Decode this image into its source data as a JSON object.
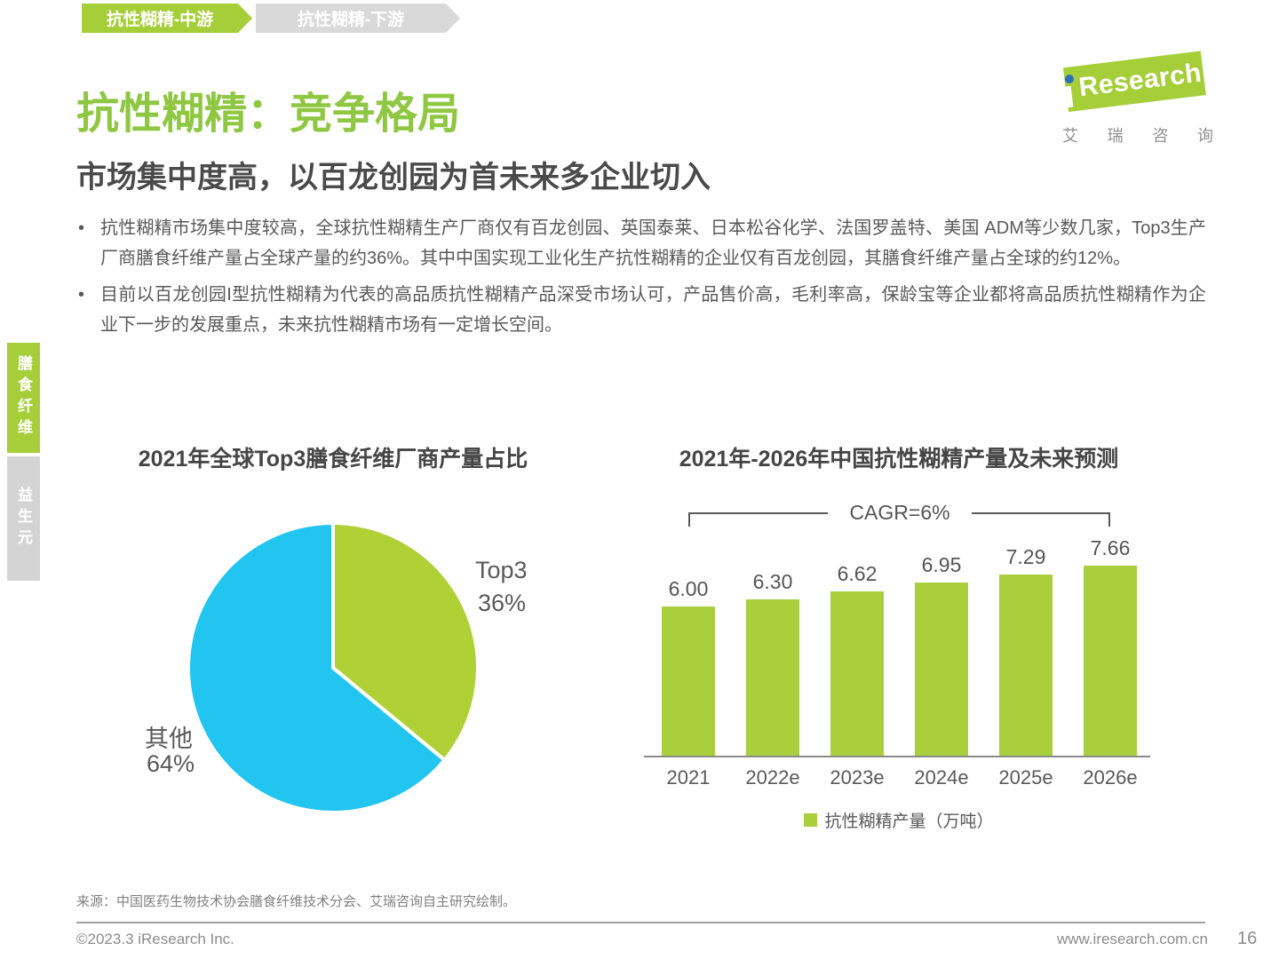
{
  "breadcrumb": {
    "items": [
      {
        "label": "抗性糊精-中游",
        "active": true
      },
      {
        "label": "抗性糊精-下游",
        "active": false
      }
    ]
  },
  "logo": {
    "brand_text": "Research",
    "chinese_chars": [
      "艾",
      "瑞",
      "咨",
      "询"
    ]
  },
  "header": {
    "title": "抗性糊精：竞争格局",
    "subtitle": "市场集中度高，以百龙创园为首未来多企业切入"
  },
  "bullets": [
    "抗性糊精市场集中度较高，全球抗性糊精生产厂商仅有百龙创园、英国泰莱、日本松谷化学、法国罗盖特、美国 ADM等少数几家，Top3生产厂商膳食纤维产量占全球产量的约36%。其中中国实现工业化生产抗性糊精的企业仅有百龙创园，其膳食纤维产量占全球的约12%。",
    "目前以百龙创园I型抗性糊精为代表的高品质抗性糊精产品深受市场认可，产品售价高，毛利率高，保龄宝等企业都将高品质抗性糊精作为企业下一步的发展重点，未来抗性糊精市场有一定增长空间。"
  ],
  "side_tabs": [
    {
      "label": "膳食纤维",
      "active": true
    },
    {
      "label": "益生元",
      "active": false
    }
  ],
  "chart_data": [
    {
      "type": "pie",
      "title": "2021年全球Top3膳食纤维厂商产量占比",
      "slices": [
        {
          "label": "Top3",
          "value": 36,
          "pct_label": "36%",
          "color": "#AFD136"
        },
        {
          "label": "其他",
          "value": 64,
          "pct_label": "64%",
          "color": "#22C5F0"
        }
      ],
      "start_angle_deg": 0,
      "direction": "clockwise",
      "legend_position": "none"
    },
    {
      "type": "bar",
      "title": "2021年-2026年中国抗性糊精产量及未来预测",
      "categories": [
        "2021",
        "2022e",
        "2023e",
        "2024e",
        "2025e",
        "2026e"
      ],
      "values": [
        6.0,
        6.3,
        6.62,
        6.95,
        7.29,
        7.66
      ],
      "value_labels": [
        "6.00",
        "6.30",
        "6.62",
        "6.95",
        "7.29",
        "7.66"
      ],
      "annotation": "CAGR=6%",
      "legend": [
        "抗性糊精产量（万吨）"
      ],
      "bar_color": "#A9D03C",
      "xlabel": "",
      "ylabel": "",
      "ylim": [
        0,
        8
      ],
      "grid": false,
      "legend_position": "bottom"
    }
  ],
  "source": "来源：中国医药生物技术协会膳食纤维技术分会、艾瑞咨询自主研究绘制。",
  "footer": {
    "left": "©2023.3 iResearch Inc.",
    "site": "www.iresearch.com.cn",
    "page": "16"
  },
  "colors": {
    "accent_green": "#A5CE39",
    "title_green": "#8FC742",
    "pie_green": "#AFD136",
    "pie_blue": "#22C5F0",
    "bar_green": "#A9D03C",
    "inactive_gray": "#D9D9D9",
    "logo_dot_blue": "#2C71B8"
  }
}
